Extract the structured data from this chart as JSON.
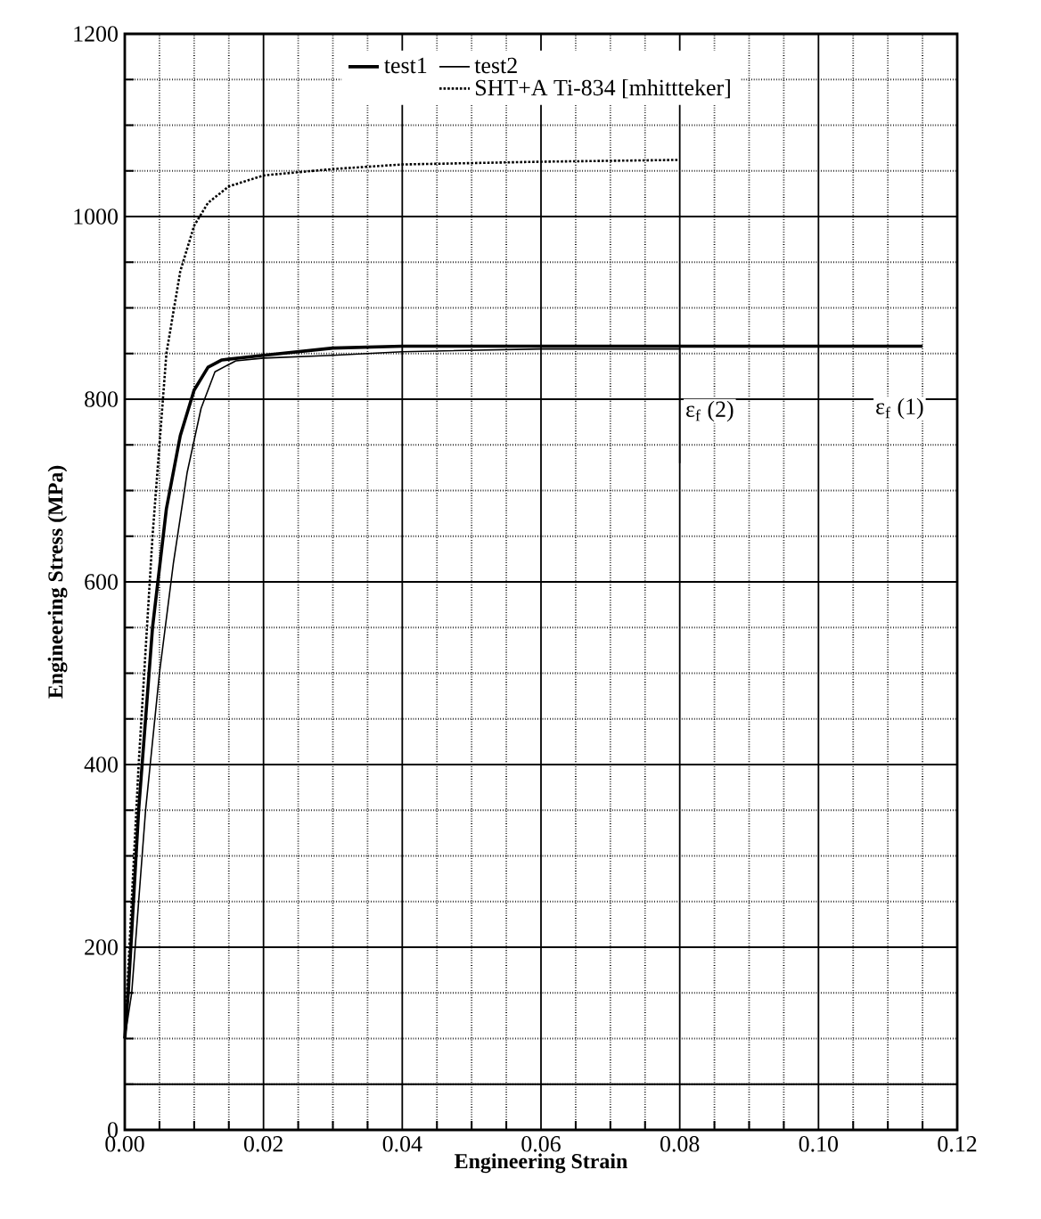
{
  "chart_data": {
    "type": "line",
    "xlabel": "Engineering Strain",
    "ylabel": "Engineering Stress (MPa)",
    "xlim": [
      0,
      0.12
    ],
    "ylim": [
      0,
      1200
    ],
    "xticks": [
      {
        "value": 0,
        "label": "0.00"
      },
      0.02,
      0.04,
      0.06,
      0.08,
      {
        "value": 0.1,
        "label": "0.10"
      },
      0.12
    ],
    "yticks": [
      0,
      200,
      400,
      600,
      800,
      1000,
      1200
    ],
    "grid": true,
    "legend": "top",
    "marker": "none",
    "ref_lines": [
      {
        "axis": "y",
        "value": 50,
        "label": null
      }
    ],
    "annotations": [
      {
        "text": "ε$_{f}$ (2)",
        "x": 0.08,
        "y": 855
      },
      {
        "text": "ε$_{f}$ (1)",
        "x": 0.115,
        "y": 858
      }
    ],
    "series": [
      {
        "name": "test1",
        "color": "#000000",
        "line_style": "solid",
        "x": [
          0,
          0.0005,
          0.002,
          0.004,
          0.006,
          0.008,
          0.01,
          0.012,
          0.014,
          0.02,
          0.03,
          0.04,
          0.06,
          0.08,
          0.115
        ],
        "values": [
          100,
          150,
          350,
          550,
          680,
          760,
          810,
          835,
          843,
          848,
          856,
          858,
          858,
          858,
          858
        ]
      },
      {
        "name": "test2",
        "color": "#000000",
        "line_style": "solid",
        "x": [
          0,
          0.001,
          0.003,
          0.005,
          0.007,
          0.009,
          0.011,
          0.013,
          0.016,
          0.02,
          0.03,
          0.04,
          0.06,
          0.08,
          0.08
        ],
        "values": [
          100,
          150,
          350,
          500,
          620,
          720,
          790,
          830,
          842,
          845,
          848,
          852,
          855,
          855,
          730
        ]
      },
      {
        "name": "SHT+A Ti-834 [mhittteker]",
        "color": "#000000",
        "line_style": "dotted",
        "x": [
          0,
          0.002,
          0.004,
          0.006,
          0.008,
          0.01,
          0.012,
          0.015,
          0.02,
          0.03,
          0.04,
          0.06,
          0.08
        ],
        "values": [
          100,
          400,
          650,
          850,
          940,
          990,
          1015,
          1033,
          1045,
          1052,
          1057,
          1060,
          1062
        ]
      }
    ]
  }
}
